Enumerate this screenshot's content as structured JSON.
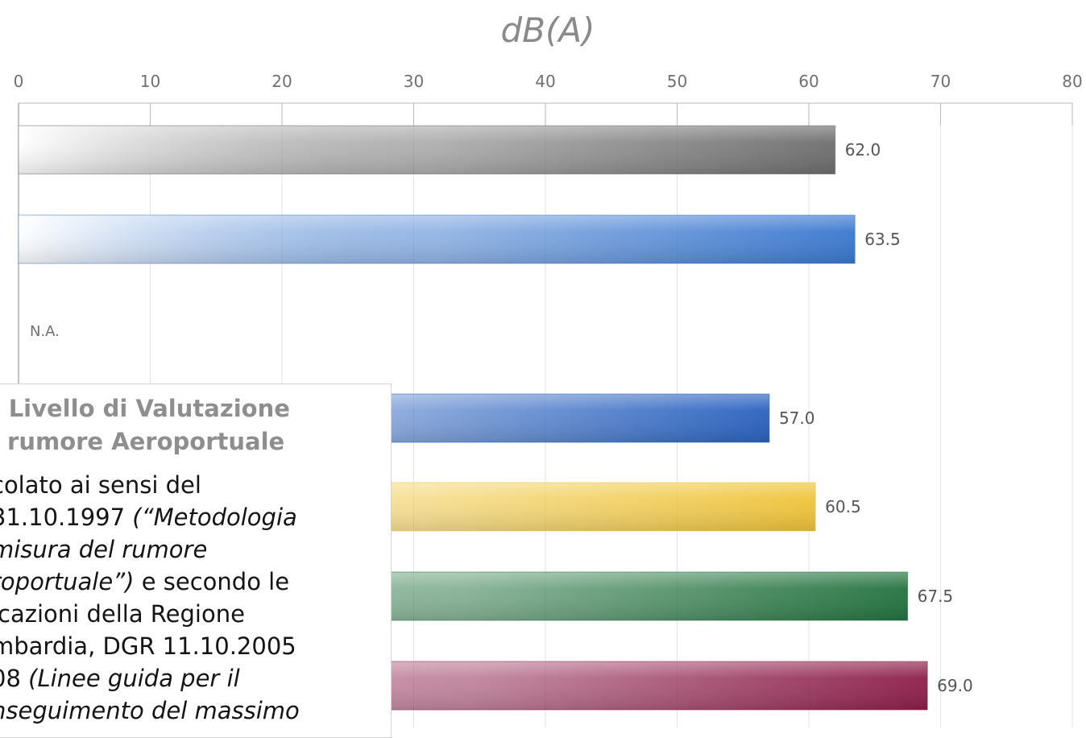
{
  "chart_data": {
    "type": "bar",
    "orientation": "horizontal",
    "title": "dB(A)",
    "xlim": [
      0,
      80
    ],
    "x_ticks": [
      0,
      10,
      20,
      30,
      40,
      50,
      60,
      70,
      80
    ],
    "axis_position": "top",
    "grid": true,
    "categories": [
      "",
      "",
      "",
      "",
      "",
      "",
      ""
    ],
    "values": [
      62.0,
      63.5,
      null,
      57.0,
      60.5,
      67.5,
      69.0
    ],
    "value_labels": [
      "62.0",
      "63.5",
      "N.A.",
      "57.0",
      "60.5",
      "67.5",
      "69.0"
    ],
    "bar_colors": [
      "#6e6e6e",
      "#3a78d0",
      null,
      "#2a62c0",
      "#efc43a",
      "#23733f",
      "#8e1f4b"
    ],
    "legend": null
  },
  "note": {
    "title_lines": [
      ": Livello di Valutazione",
      "i rumore Aeroportuale"
    ],
    "body_lines": [
      [
        {
          "t": "colato ai sensi del",
          "i": false
        }
      ],
      [
        {
          "t": "31.10.1997 ",
          "i": false
        },
        {
          "t": "(“Metodologia",
          "i": true
        }
      ],
      [
        {
          "t": "misura del rumore",
          "i": true
        }
      ],
      [
        {
          "t": "roportuale”)",
          "i": true
        },
        {
          "t": " e secondo le",
          "i": false
        }
      ],
      [
        {
          "t": "icazioni della Regione",
          "i": false
        }
      ],
      [
        {
          "t": "mbardia, DGR 11.10.2005",
          "i": false
        }
      ],
      [
        {
          "t": "08 ",
          "i": false
        },
        {
          "t": "(Linee guida per il",
          "i": true
        }
      ],
      [
        {
          "t": "nseguimento del massimo",
          "i": true
        }
      ]
    ]
  }
}
